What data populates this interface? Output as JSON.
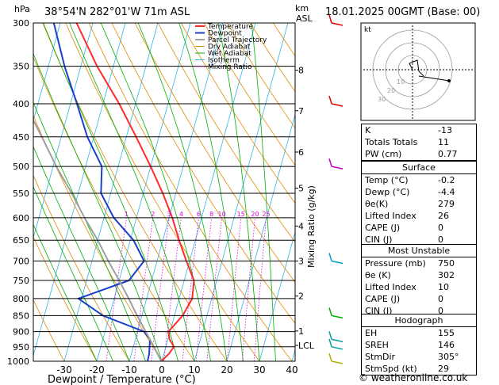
{
  "header": {
    "hpa_label": "hPa",
    "location": "38°54'N  282°01'W  71m  ASL",
    "km_label": "km",
    "asl_label": "ASL",
    "datetime": "18.01.2025  00GMT  (Base: 00)"
  },
  "chart_data": {
    "type": "skew-t",
    "xlabel": "Dewpoint / Temperature (°C)",
    "ylabel_right": "Mixing Ratio (g/kg)",
    "pressure_levels": [
      300,
      350,
      400,
      450,
      500,
      550,
      600,
      650,
      700,
      750,
      800,
      850,
      900,
      950,
      1000
    ],
    "pressure_labels": [
      "300",
      "350",
      "400",
      "450",
      "500",
      "550",
      "600",
      "650",
      "700",
      "750",
      "800",
      "850",
      "900",
      "950",
      "1000"
    ],
    "x_ticks": [
      -30,
      -20,
      -10,
      0,
      10,
      20,
      30,
      40
    ],
    "x_tick_labels": [
      "-30",
      "-20",
      "-10",
      "0",
      "10",
      "20",
      "30",
      "40"
    ],
    "km_ticks": [
      {
        "p": 355,
        "label": "8"
      },
      {
        "p": 410,
        "label": "7"
      },
      {
        "p": 475,
        "label": "6"
      },
      {
        "p": 540,
        "label": "5"
      },
      {
        "p": 618,
        "label": "4"
      },
      {
        "p": 700,
        "label": "3"
      },
      {
        "p": 793,
        "label": "2"
      },
      {
        "p": 898,
        "label": "1"
      },
      {
        "p": 945,
        "label": "LCL"
      }
    ],
    "mixing_ratio_labels": [
      "1",
      "2",
      "3",
      "4",
      "6",
      "8",
      "10",
      "15",
      "20",
      "25"
    ],
    "mixing_ratio_values": [
      1,
      2,
      3,
      4,
      6,
      8,
      10,
      15,
      20,
      25
    ],
    "legend": [
      "Temperature",
      "Dewpoint",
      "Parcel Trajectory",
      "Dry Adiabat",
      "Wet Adiabat",
      "Isotherm",
      "Mixing Ratio"
    ],
    "series": [
      {
        "name": "Temperature",
        "points": [
          [
            1000,
            -0.2
          ],
          [
            975,
            1.5
          ],
          [
            950,
            2.5
          ],
          [
            925,
            0.5
          ],
          [
            900,
            -0.5
          ],
          [
            875,
            1
          ],
          [
            850,
            2.5
          ],
          [
            800,
            4
          ],
          [
            750,
            3
          ],
          [
            700,
            -1
          ],
          [
            650,
            -5
          ],
          [
            600,
            -9
          ],
          [
            550,
            -14
          ],
          [
            500,
            -20
          ],
          [
            450,
            -27
          ],
          [
            400,
            -35
          ],
          [
            350,
            -45
          ],
          [
            300,
            -55
          ]
        ]
      },
      {
        "name": "Dewpoint",
        "points": [
          [
            1000,
            -4.4
          ],
          [
            975,
            -4.5
          ],
          [
            950,
            -5
          ],
          [
            925,
            -5.5
          ],
          [
            900,
            -8
          ],
          [
            850,
            -22
          ],
          [
            800,
            -31
          ],
          [
            750,
            -17
          ],
          [
            700,
            -14
          ],
          [
            650,
            -19
          ],
          [
            600,
            -27
          ],
          [
            550,
            -33
          ],
          [
            500,
            -35
          ],
          [
            450,
            -42
          ],
          [
            400,
            -48
          ],
          [
            350,
            -55
          ],
          [
            300,
            -62
          ]
        ]
      },
      {
        "name": "Parcel Trajectory",
        "points": [
          [
            1000,
            -0.2
          ],
          [
            945,
            -4
          ],
          [
            900,
            -7.5
          ],
          [
            850,
            -11.5
          ],
          [
            800,
            -15.5
          ],
          [
            750,
            -20
          ],
          [
            700,
            -25
          ],
          [
            650,
            -30
          ],
          [
            600,
            -36
          ],
          [
            550,
            -42
          ],
          [
            500,
            -49
          ],
          [
            450,
            -56
          ],
          [
            400,
            -64
          ],
          [
            350,
            -73
          ],
          [
            300,
            -82
          ]
        ]
      }
    ],
    "wind_barbs_pressure": [
      300,
      400,
      500,
      700,
      850,
      925,
      950,
      1000
    ]
  },
  "hodograph": {
    "unit_label": "kt",
    "ring_labels": [
      "10",
      "20",
      "30"
    ]
  },
  "indices": [
    {
      "label": "K",
      "value": "-13"
    },
    {
      "label": "Totals Totals",
      "value": "11"
    },
    {
      "label": "PW (cm)",
      "value": "0.77"
    }
  ],
  "surface": {
    "title": "Surface",
    "rows": [
      {
        "label": "Temp (°C)",
        "value": "-0.2"
      },
      {
        "label": "Dewp (°C)",
        "value": "-4.4"
      },
      {
        "label": "θe(K)",
        "value": "279"
      },
      {
        "label": "Lifted Index",
        "value": "26"
      },
      {
        "label": "CAPE (J)",
        "value": "0"
      },
      {
        "label": "CIN (J)",
        "value": "0"
      }
    ]
  },
  "most_unstable": {
    "title": "Most Unstable",
    "rows": [
      {
        "label": "Pressure (mb)",
        "value": "750"
      },
      {
        "label": "θe (K)",
        "value": "302"
      },
      {
        "label": "Lifted Index",
        "value": "10"
      },
      {
        "label": "CAPE (J)",
        "value": "0"
      },
      {
        "label": "CIN (J)",
        "value": "0"
      }
    ]
  },
  "hodograph_table": {
    "title": "Hodograph",
    "rows": [
      {
        "label": "EH",
        "value": "155"
      },
      {
        "label": "SREH",
        "value": "146"
      },
      {
        "label": "StmDir",
        "value": "305°"
      },
      {
        "label": "StmSpd (kt)",
        "value": "29"
      }
    ]
  },
  "credit": "© weatheronline.co.uk",
  "colors": {
    "temperature": "#ff2a2a",
    "dewpoint": "#1a3fcc",
    "parcel": "#a0a0a0",
    "dry_adiabat": "#e08a00",
    "wet_adiabat": "#00b000",
    "isotherm": "#33b5e5",
    "mixing_ratio": "#e000e0"
  }
}
